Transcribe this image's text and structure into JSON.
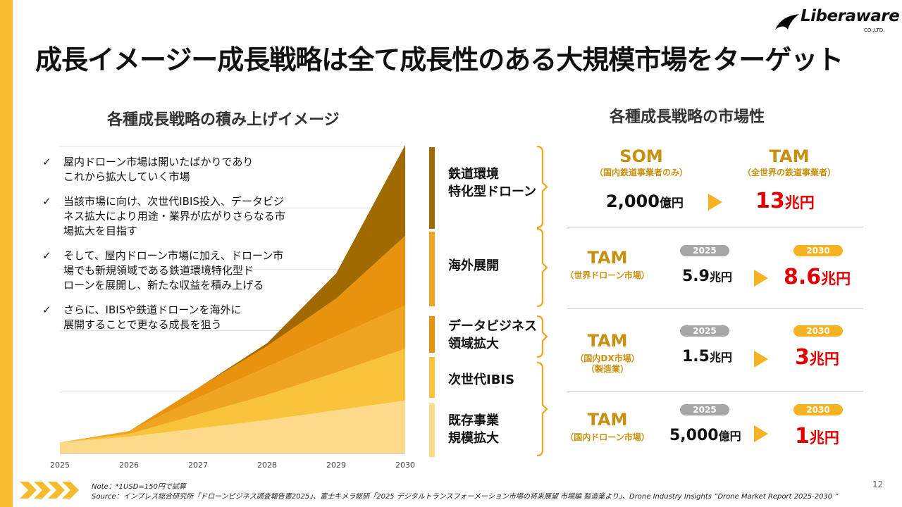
{
  "slide_title": "成長イメージー成長戦略は全て成長性のある大規模市場をターゲット",
  "logo": {
    "text": "Liberaware",
    "sub": "CO.,LTD."
  },
  "left_section": {
    "title": "各種成長戦略の積み上げイメージ",
    "bullets": [
      {
        "lines": [
          "屋内ドローン市場は開いたばかりであり",
          "これから拡大していく市場"
        ]
      },
      {
        "lines": [
          "当該市場に向け、次世代IBIS投入、データビジ",
          "ネス拡大により用途・業界が広がりさらなる市",
          "場拡大を目指す"
        ]
      },
      {
        "lines": [
          "そして、屋内ドローン市場に加え、ドローン市",
          "場でも新規領域である鉄道環境特化型ド",
          "ローンを展開し、新たな収益を積み上げる"
        ]
      },
      {
        "lines": [
          "さらに、IBISや鉄道ドローンを海外に",
          "展開することで更なる成長を狙う"
        ]
      }
    ]
  },
  "chart_data": {
    "type": "area",
    "x": [
      "2025",
      "2026",
      "2027",
      "2028",
      "2029",
      "2030"
    ],
    "stacked": true,
    "grid": true,
    "series": [
      {
        "values": [
          8,
          12,
          18,
          24,
          31,
          38
        ],
        "color": "#FDD98A"
      },
      {
        "values": [
          0,
          2,
          10,
          18,
          27,
          37
        ],
        "color": "#F9C33B"
      },
      {
        "values": [
          0,
          2,
          12,
          20,
          26,
          31
        ],
        "color": "#F0A522"
      },
      {
        "values": [
          0,
          0,
          7,
          15,
          27,
          50
        ],
        "color": "#E8920E"
      },
      {
        "values": [
          0,
          0,
          0,
          2,
          18,
          65
        ],
        "color": "#A06A00"
      }
    ],
    "ylim": [
      0,
      220
    ]
  },
  "right_section": {
    "title": "各種成長戦略の市場性",
    "segments": [
      {
        "label_lines": [
          "鉄道環境",
          "特化型ドローン"
        ],
        "color": "#A06A00"
      },
      {
        "label_lines": [
          "海外展開"
        ],
        "color": "#F0A522"
      },
      {
        "label_lines": [
          "データビジネス",
          "領域拡大"
        ],
        "color": "#E8920E"
      },
      {
        "label_lines": [
          "次世代IBIS"
        ],
        "color": "#F9C33B"
      },
      {
        "label_lines": [
          "既存事業",
          "規模拡大"
        ],
        "color": "#FDD98A"
      }
    ],
    "rows": [
      {
        "left_head": "SOM",
        "left_sub": "（国内鉄道事業者のみ）",
        "right_head": "TAM",
        "right_sub": "（全世界の鉄道事業者）",
        "from_num": "2,000",
        "from_unit": "億円",
        "to_num": "13",
        "to_unit": "兆円"
      },
      {
        "head": "TAM",
        "sub_lines": [
          "（世界ドローン市場）"
        ],
        "from_year": "2025",
        "to_year": "2030",
        "from_num": "5.9",
        "from_unit": "兆円",
        "to_num": "8.6",
        "to_unit": "兆円"
      },
      {
        "head": "TAM",
        "sub_lines": [
          "（国内DX市場）",
          "（製造業）"
        ],
        "from_year": "2025",
        "to_year": "2030",
        "from_num": "1.5",
        "from_unit": "兆円",
        "to_num": "3",
        "to_unit": "兆円"
      },
      {
        "head": "TAM",
        "sub_lines": [
          "（国内ドローン市場）"
        ],
        "from_year": "2025",
        "to_year": "2030",
        "from_num": "5,000",
        "from_unit": "億円",
        "to_num": "1",
        "to_unit": "兆円"
      }
    ]
  },
  "footer": {
    "note": "Note：*1USD=150円で試算",
    "source": "Source：インプレス総合研究所「ドローンビジネス調査報告書2025」、富士キメラ総研「2025 デジタルトランスフォーメーション市場の将来展望 市場編 製造業より」、Drone Industry Insights “Drone Market Report 2025-2030 ”",
    "page": "12"
  },
  "colors": {
    "accent": "#F7BB2E",
    "gold_text": "#C8900E",
    "red": "#E00000",
    "pill_gray": "#A6A6A6"
  }
}
